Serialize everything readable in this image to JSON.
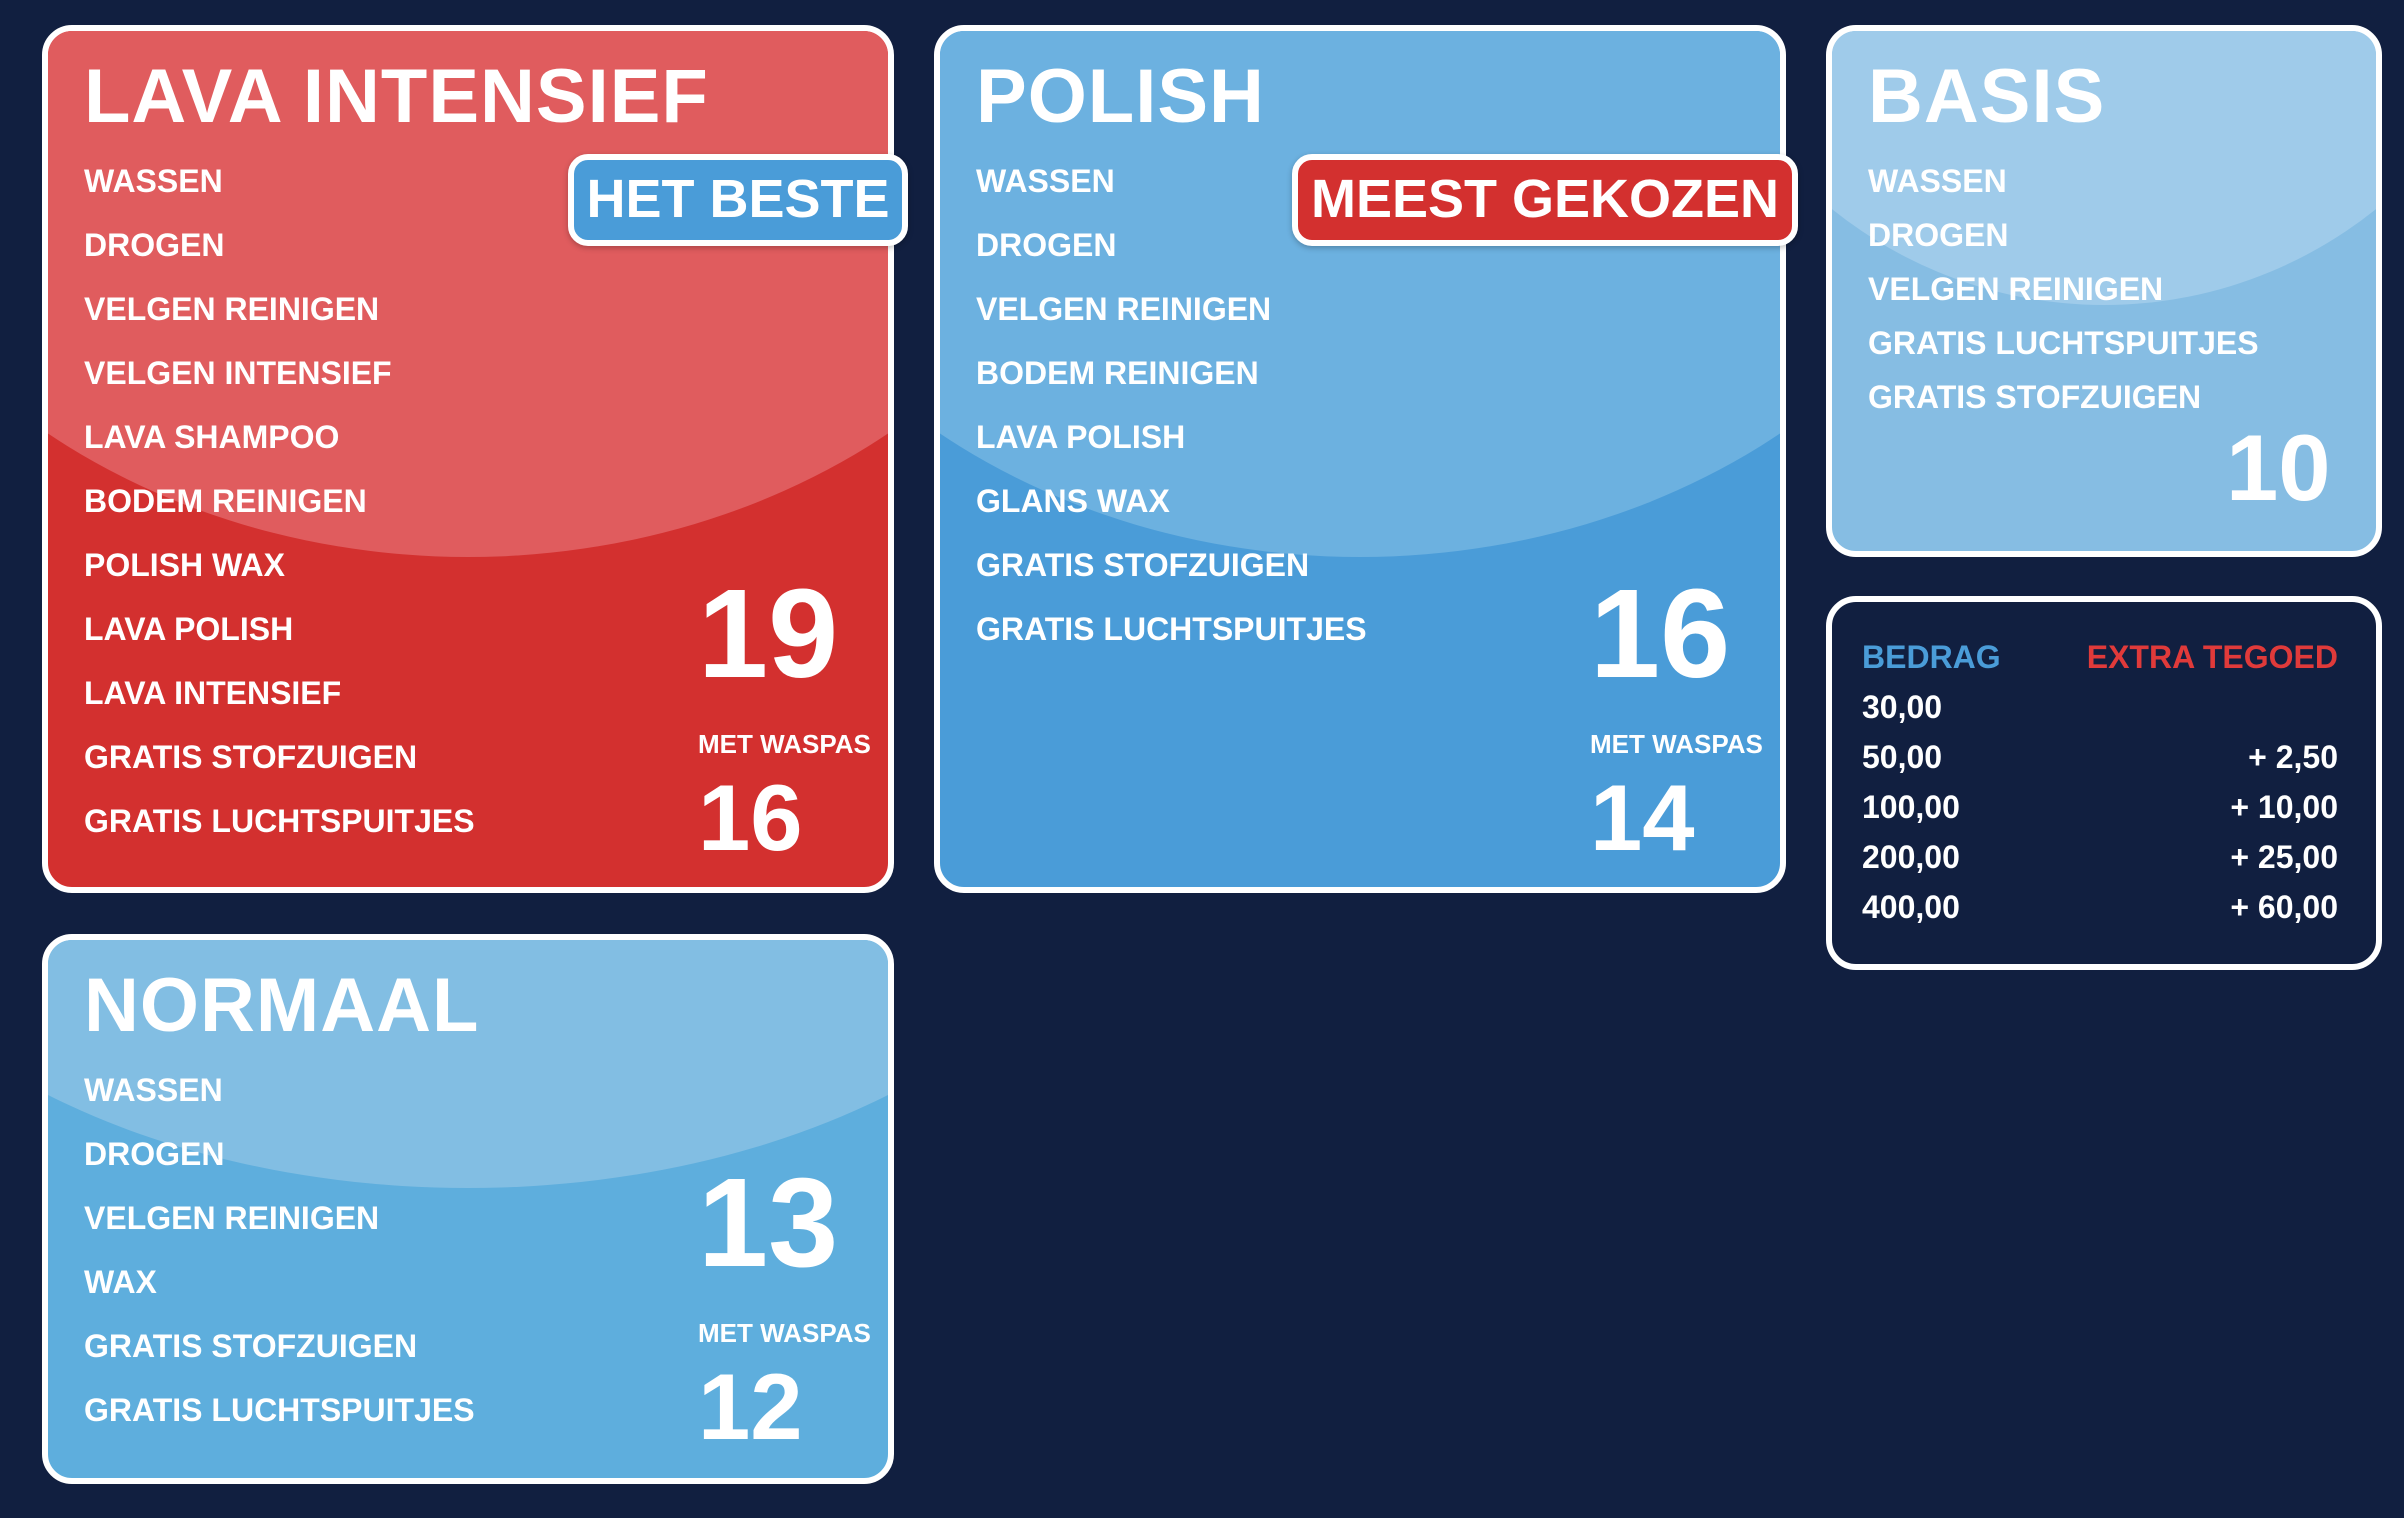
{
  "colors": {
    "page_background": "#111f40",
    "red": "#d3302f",
    "red_light": "#e05c5e",
    "blue": "#4a9cd8",
    "blue_light": "#6cb1e0",
    "sky": "#5eaedd",
    "sky_light": "#82bee3",
    "pale": "#86bde3",
    "pale_light": "#9fcbea",
    "bedrag_header": "#4a9cd8",
    "extra_header": "#e03a3a"
  },
  "programs": {
    "lava_intensief": {
      "title": "LAVA INTENSIEF",
      "badge": "HET BESTE",
      "features": [
        "WASSEN",
        "DROGEN",
        "VELGEN REINIGEN",
        "VELGEN INTENSIEF",
        "LAVA SHAMPOO",
        "BODEM REINIGEN",
        "POLISH WAX",
        "LAVA POLISH",
        "LAVA INTENSIEF",
        "GRATIS STOFZUIGEN",
        "GRATIS LUCHTSPUITJES"
      ],
      "price": "19",
      "waspas_label": "MET WASPAS",
      "waspas_price": "16"
    },
    "polish": {
      "title": "POLISH",
      "badge": "MEEST GEKOZEN",
      "features": [
        "WASSEN",
        "DROGEN",
        "VELGEN REINIGEN",
        "BODEM REINIGEN",
        "LAVA POLISH",
        "GLANS WAX",
        "GRATIS STOFZUIGEN",
        "GRATIS LUCHTSPUITJES"
      ],
      "price": "16",
      "waspas_label": "MET WASPAS",
      "waspas_price": "14"
    },
    "basis": {
      "title": "BASIS",
      "features": [
        "WASSEN",
        "DROGEN",
        "VELGEN REINIGEN",
        "GRATIS LUCHTSPUITJES",
        "GRATIS STOFZUIGEN"
      ],
      "price": "10"
    },
    "normaal": {
      "title": "NORMAAL",
      "features": [
        "WASSEN",
        "DROGEN",
        "VELGEN REINIGEN",
        "WAX",
        "GRATIS STOFZUIGEN",
        "GRATIS LUCHTSPUITJES"
      ],
      "price": "13",
      "waspas_label": "MET WASPAS",
      "waspas_price": "12"
    }
  },
  "tariffs": {
    "header_amount": "BEDRAG",
    "header_extra": "EXTRA TEGOED",
    "rows": [
      {
        "amount": "30,00",
        "extra": ""
      },
      {
        "amount": "50,00",
        "extra": "+ 2,50"
      },
      {
        "amount": "100,00",
        "extra": "+ 10,00"
      },
      {
        "amount": "200,00",
        "extra": "+ 25,00"
      },
      {
        "amount": "400,00",
        "extra": "+ 60,00"
      }
    ]
  }
}
